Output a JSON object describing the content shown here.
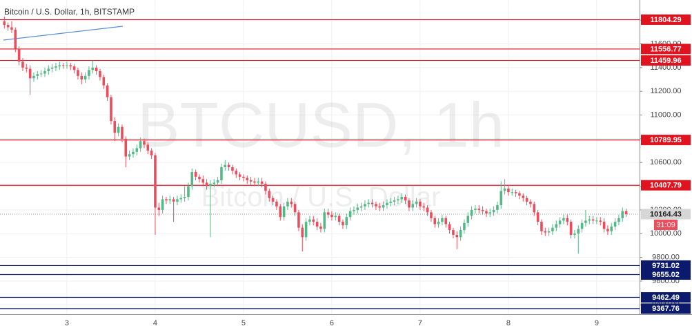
{
  "chart_data": {
    "type": "candlestick",
    "title": "Bitcoin / U.S. Dollar, 1h, BITSTAMP",
    "watermark": "BTCUSD, 1h",
    "watermark_subtitle": "Bitcoin / U.S. Dollar",
    "countdown": "31:09",
    "up_color": "#53b987",
    "down_color": "#eb4d5c",
    "grid": true,
    "categories": [
      null,
      null,
      null,
      null,
      null,
      null,
      null,
      null,
      null,
      null,
      null,
      null,
      null,
      null,
      null,
      null,
      null,
      "3",
      null,
      null,
      null,
      null,
      null,
      null,
      null,
      null,
      null,
      null,
      null,
      null,
      null,
      null,
      null,
      null,
      null,
      null,
      null,
      null,
      null,
      null,
      null,
      "4",
      null,
      null,
      null,
      null,
      null,
      null,
      null,
      null,
      null,
      null,
      null,
      null,
      null,
      null,
      null,
      null,
      null,
      null,
      null,
      null,
      null,
      null,
      null,
      "5",
      null,
      null,
      null,
      null,
      null,
      null,
      null,
      null,
      null,
      null,
      null,
      null,
      null,
      null,
      null,
      null,
      null,
      null,
      null,
      null,
      null,
      null,
      null,
      "6",
      null,
      null,
      null,
      null,
      null,
      null,
      null,
      null,
      null,
      null,
      null,
      null,
      null,
      null,
      null,
      null,
      null,
      null,
      null,
      null,
      null,
      null,
      null,
      "7",
      null,
      null,
      null,
      null,
      null,
      null,
      null,
      null,
      null,
      null,
      null,
      null,
      null,
      null,
      null,
      null,
      null,
      null,
      null,
      null,
      null,
      null,
      null,
      "8",
      null,
      null,
      null,
      null,
      null,
      null,
      null,
      null,
      null,
      null,
      null,
      null,
      null,
      null,
      null,
      null,
      null,
      null,
      null,
      null,
      null,
      null,
      null,
      "9",
      null,
      null,
      null,
      null,
      null,
      null,
      null,
      null
    ],
    "open": [
      11790,
      11760,
      11740,
      11720,
      11560,
      11450,
      11400,
      11390,
      11310,
      11330,
      11345,
      11350,
      11370,
      11390,
      11400,
      11410,
      11420,
      11415,
      11420,
      11410,
      11380,
      11330,
      11300,
      11330,
      11380,
      11400,
      11370,
      11320,
      11250,
      11150,
      10950,
      10850,
      10900,
      10800,
      10650,
      10670,
      10690,
      10720,
      10780,
      10750,
      10700,
      10660,
      10220,
      10200,
      10290,
      10280,
      10290,
      10270,
      10290,
      10300,
      10310,
      10400,
      10520,
      10480,
      10460,
      10430,
      10400,
      10420,
      10430,
      10450,
      10560,
      10580,
      10560,
      10530,
      10500,
      10480,
      10470,
      10450,
      10440,
      10430,
      10440,
      10420,
      10360,
      10300,
      10270,
      10230,
      10140,
      10230,
      10270,
      10250,
      10180,
      10050,
      9970,
      10100,
      10120,
      10100,
      10060,
      10040,
      10180,
      10160,
      10140,
      10150,
      10100,
      10070,
      10140,
      10190,
      10200,
      10220,
      10230,
      10250,
      10260,
      10250,
      10230,
      10220,
      10240,
      10260,
      10270,
      10280,
      10290,
      10310,
      10280,
      10220,
      10250,
      10270,
      10230,
      10220,
      10180,
      10130,
      10080,
      10100,
      10130,
      10080,
      10030,
      9990,
      9970,
      10030,
      10090,
      10150,
      10200,
      10210,
      10200,
      10190,
      10170,
      10180,
      10200,
      10240,
      10360,
      10380,
      10350,
      10350,
      10340,
      10320,
      10300,
      10270,
      10250,
      10180,
      10100,
      10020,
      10010,
      10020,
      10050,
      10080,
      10110,
      10130,
      10100,
      9990,
      10000,
      10040,
      10090,
      10110,
      10120,
      10110,
      10110,
      10100,
      10040,
      10020,
      10060,
      10100,
      10130,
      10190
    ],
    "high": [
      11830,
      11780,
      11790,
      11740,
      11580,
      11480,
      11430,
      11420,
      11360,
      11370,
      11380,
      11400,
      11420,
      11430,
      11440,
      11450,
      11440,
      11450,
      11440,
      11430,
      11400,
      11360,
      11360,
      11410,
      11460,
      11420,
      11390,
      11340,
      11270,
      11170,
      10980,
      10930,
      10920,
      10820,
      10700,
      10720,
      10750,
      10810,
      10800,
      10770,
      10720,
      10680,
      10260,
      10320,
      10310,
      10320,
      10310,
      10320,
      10330,
      10400,
      10430,
      10550,
      10540,
      10500,
      10490,
      10460,
      10450,
      10460,
      10480,
      10590,
      10620,
      10600,
      10580,
      10550,
      10520,
      10500,
      10490,
      10480,
      10470,
      10470,
      10470,
      10440,
      10380,
      10320,
      10290,
      10250,
      10260,
      10300,
      10300,
      10270,
      10200,
      10080,
      10130,
      10150,
      10150,
      10130,
      10090,
      10210,
      10210,
      10190,
      10180,
      10170,
      10120,
      10170,
      10220,
      10230,
      10250,
      10260,
      10280,
      10290,
      10290,
      10270,
      10260,
      10270,
      10290,
      10300,
      10310,
      10320,
      10340,
      10330,
      10300,
      10280,
      10300,
      10290,
      10260,
      10240,
      10200,
      10150,
      10130,
      10160,
      10150,
      10100,
      10050,
      10020,
      10060,
      10120,
      10180,
      10230,
      10240,
      10240,
      10230,
      10210,
      10210,
      10230,
      10270,
      10440,
      10460,
      10410,
      10380,
      10370,
      10360,
      10340,
      10320,
      10290,
      10270,
      10200,
      10120,
      10050,
      10050,
      10080,
      10110,
      10140,
      10160,
      10160,
      10120,
      10030,
      10070,
      10120,
      10200,
      10150,
      10150,
      10140,
      10140,
      10130,
      10070,
      10090,
      10130,
      10160,
      10220,
      10210
    ],
    "low": [
      11730,
      11710,
      11690,
      11530,
      11420,
      11370,
      11360,
      11170,
      11280,
      11300,
      11320,
      11320,
      11340,
      11360,
      11370,
      11380,
      11390,
      11390,
      11380,
      11350,
      11300,
      11260,
      11270,
      11300,
      11350,
      11340,
      11290,
      11220,
      11120,
      10920,
      10780,
      10820,
      10770,
      10560,
      10620,
      10640,
      10660,
      10690,
      10720,
      10670,
      10630,
      9990,
      10150,
      10170,
      10250,
      10250,
      10100,
      10240,
      10260,
      10270,
      10280,
      10370,
      10450,
      10430,
      10400,
      10370,
      9970,
      10390,
      10400,
      10420,
      10530,
      10530,
      10500,
      10470,
      10450,
      10440,
      10420,
      10410,
      10400,
      10400,
      10390,
      10330,
      10270,
      10240,
      10200,
      10110,
      10110,
      10200,
      10220,
      10150,
      10020,
      9850,
      9940,
      10070,
      10070,
      10030,
      10010,
      10010,
      10130,
      10110,
      10110,
      10070,
      10040,
      10040,
      10110,
      10160,
      10170,
      10190,
      10200,
      10220,
      10220,
      10200,
      10190,
      10190,
      10210,
      10230,
      10240,
      10250,
      10260,
      10250,
      10190,
      10190,
      10220,
      10200,
      10190,
      10150,
      10100,
      10050,
      10050,
      10070,
      10050,
      10000,
      9960,
      9870,
      9940,
      10000,
      10060,
      10120,
      10170,
      10170,
      10160,
      10140,
      10140,
      10150,
      10170,
      10210,
      10330,
      10320,
      10320,
      10310,
      10290,
      10270,
      10240,
      10220,
      10150,
      10070,
      9990,
      9980,
      9980,
      9990,
      10020,
      10050,
      10080,
      10070,
      9960,
      9960,
      9830,
      10010,
      10060,
      10080,
      10080,
      10080,
      10070,
      10010,
      9990,
      9990,
      10030,
      10070,
      10100,
      10140
    ],
    "close": [
      11760,
      11740,
      11720,
      11560,
      11450,
      11400,
      11390,
      11310,
      11330,
      11345,
      11350,
      11370,
      11390,
      11400,
      11410,
      11420,
      11415,
      11420,
      11410,
      11380,
      11330,
      11300,
      11330,
      11380,
      11400,
      11370,
      11320,
      11250,
      11150,
      10950,
      10850,
      10900,
      10800,
      10650,
      10670,
      10690,
      10720,
      10780,
      10750,
      10700,
      10660,
      10220,
      10200,
      10290,
      10280,
      10290,
      10270,
      10290,
      10300,
      10310,
      10400,
      10520,
      10480,
      10460,
      10430,
      10400,
      10420,
      10430,
      10450,
      10560,
      10580,
      10560,
      10530,
      10500,
      10480,
      10470,
      10450,
      10440,
      10430,
      10440,
      10420,
      10360,
      10300,
      10270,
      10230,
      10140,
      10230,
      10270,
      10250,
      10180,
      10050,
      9970,
      10100,
      10120,
      10100,
      10060,
      10040,
      10180,
      10160,
      10140,
      10150,
      10100,
      10070,
      10140,
      10190,
      10200,
      10220,
      10230,
      10250,
      10260,
      10250,
      10230,
      10220,
      10240,
      10260,
      10270,
      10280,
      10290,
      10310,
      10280,
      10220,
      10250,
      10270,
      10230,
      10220,
      10180,
      10130,
      10080,
      10100,
      10130,
      10080,
      10030,
      9990,
      9970,
      10030,
      10090,
      10150,
      10200,
      10210,
      10200,
      10190,
      10170,
      10180,
      10200,
      10240,
      10360,
      10380,
      10350,
      10350,
      10340,
      10320,
      10300,
      10270,
      10250,
      10180,
      10100,
      10020,
      10010,
      10020,
      10050,
      10080,
      10110,
      10130,
      10100,
      9990,
      10000,
      10040,
      10090,
      10110,
      10120,
      10110,
      10110,
      10100,
      10040,
      10020,
      10060,
      10100,
      10130,
      10190,
      10164.43
    ],
    "ylim": [
      9320,
      11970
    ],
    "yticks": [
      {
        "value": 9400,
        "label": "9400.00"
      },
      {
        "value": 9600,
        "label": "9600.00"
      },
      {
        "value": 9800,
        "label": "9800.00"
      },
      {
        "value": 10000,
        "label": "10000.00"
      },
      {
        "value": 10200,
        "label": "10200.00"
      },
      {
        "value": 10400,
        "label": "10400.00"
      },
      {
        "value": 10600,
        "label": "10600.00"
      },
      {
        "value": 10800,
        "label": "10800.00"
      },
      {
        "value": 11000,
        "label": "11000.00"
      },
      {
        "value": 11200,
        "label": "11200.00"
      },
      {
        "value": 11400,
        "label": "11400.00"
      },
      {
        "value": 11600,
        "label": "11600.00"
      },
      {
        "value": 11800,
        "label": "11800.00"
      }
    ],
    "levels": [
      {
        "value": 11804.29,
        "color": "#e0131e"
      },
      {
        "value": 11556.77,
        "color": "#e0131e"
      },
      {
        "value": 11459.96,
        "color": "#e0131e"
      },
      {
        "value": 10789.95,
        "color": "#e0131e"
      },
      {
        "value": 10407.79,
        "color": "#e0131e"
      },
      {
        "value": 9731.02,
        "color": "#0c1a6e"
      },
      {
        "value": 9655.02,
        "color": "#0c1a6e"
      },
      {
        "value": 9462.49,
        "color": "#0c1a6e"
      },
      {
        "value": 9367.76,
        "color": "#0c1a6e"
      }
    ]
  }
}
